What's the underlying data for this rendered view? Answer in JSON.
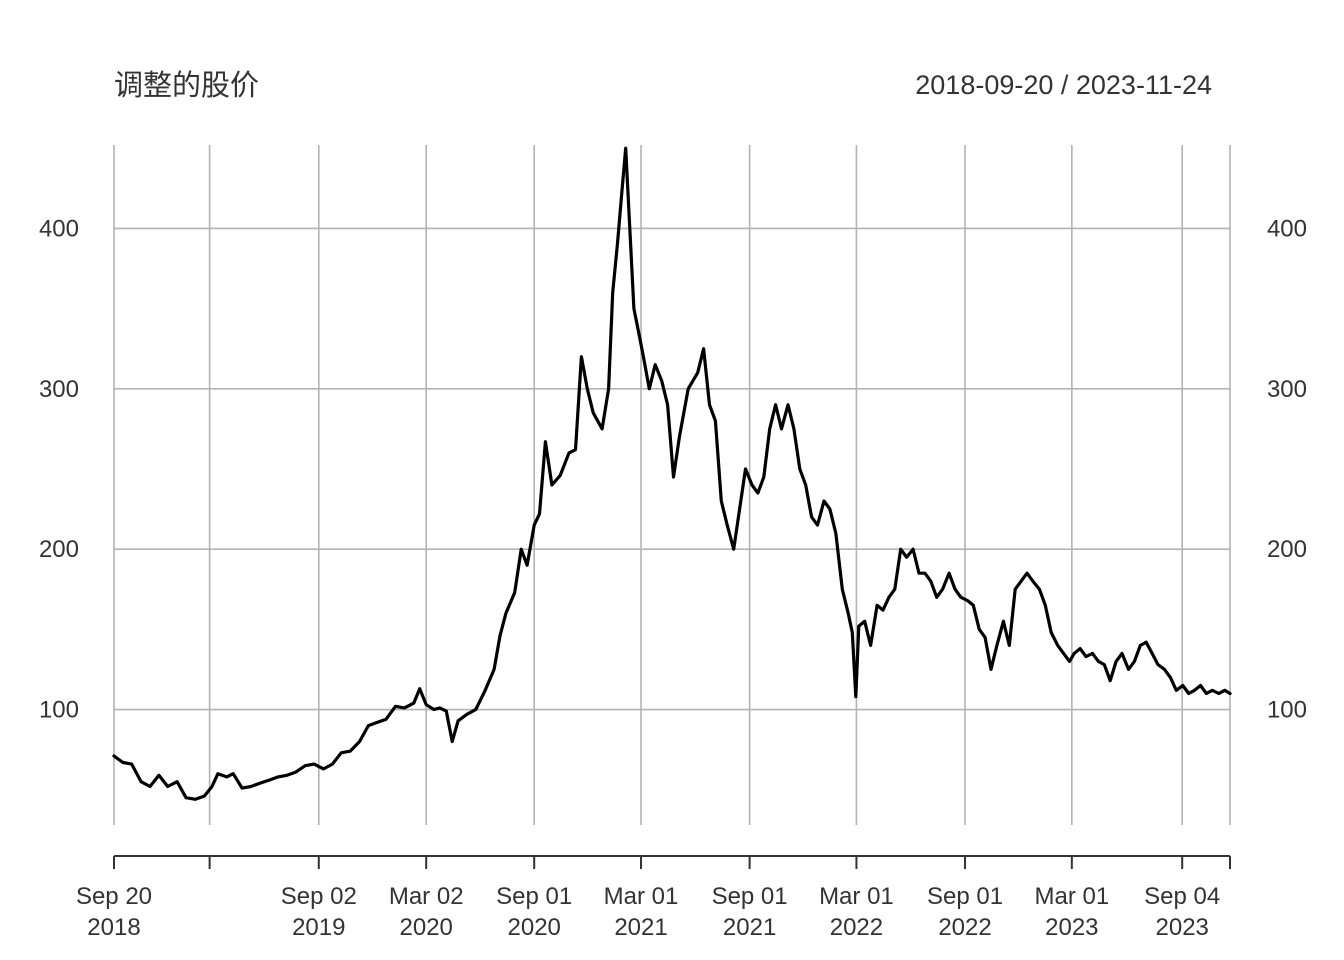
{
  "chart_data": {
    "type": "line",
    "title": "调整的股价",
    "date_range": "2018-09-20 / 2023-11-24",
    "x_range": [
      "2018-09-20",
      "2023-11-24"
    ],
    "ylim": [
      28,
      452
    ],
    "y_ticks": [
      100,
      200,
      300,
      400
    ],
    "x_gridlines": [
      "2018-09-20",
      "2019-03-01",
      "2019-09-02",
      "2020-03-02",
      "2020-09-01",
      "2021-03-01",
      "2021-09-01",
      "2022-03-01",
      "2022-09-01",
      "2023-03-01",
      "2023-09-04",
      "2023-11-24"
    ],
    "x_tick_labels": [
      {
        "date": "2018-09-20",
        "line1": "Sep 20",
        "line2": "2018"
      },
      {
        "date": "2019-09-02",
        "line1": "Sep 02",
        "line2": "2019"
      },
      {
        "date": "2020-03-02",
        "line1": "Mar 02",
        "line2": "2020"
      },
      {
        "date": "2020-09-01",
        "line1": "Sep 01",
        "line2": "2020"
      },
      {
        "date": "2021-03-01",
        "line1": "Mar 01",
        "line2": "2021"
      },
      {
        "date": "2021-09-01",
        "line1": "Sep 01",
        "line2": "2021"
      },
      {
        "date": "2022-03-01",
        "line1": "Mar 01",
        "line2": "2022"
      },
      {
        "date": "2022-09-01",
        "line1": "Sep 01",
        "line2": "2022"
      },
      {
        "date": "2023-03-01",
        "line1": "Mar 01",
        "line2": "2023"
      },
      {
        "date": "2023-09-04",
        "line1": "Sep 04",
        "line2": "2023"
      }
    ],
    "grid": true,
    "series": [
      {
        "color": "#000000",
        "points": [
          [
            "2018-09-20",
            71
          ],
          [
            "2018-10-05",
            67
          ],
          [
            "2018-10-20",
            66
          ],
          [
            "2018-11-05",
            55
          ],
          [
            "2018-11-20",
            52
          ],
          [
            "2018-12-05",
            59
          ],
          [
            "2018-12-20",
            52
          ],
          [
            "2019-01-05",
            55
          ],
          [
            "2019-01-20",
            45
          ],
          [
            "2019-02-05",
            44
          ],
          [
            "2019-02-20",
            46
          ],
          [
            "2019-03-05",
            52
          ],
          [
            "2019-03-15",
            60
          ],
          [
            "2019-03-30",
            58
          ],
          [
            "2019-04-10",
            60
          ],
          [
            "2019-04-25",
            51
          ],
          [
            "2019-05-10",
            52
          ],
          [
            "2019-05-25",
            54
          ],
          [
            "2019-06-10",
            56
          ],
          [
            "2019-06-25",
            58
          ],
          [
            "2019-07-10",
            59
          ],
          [
            "2019-07-25",
            61
          ],
          [
            "2019-08-10",
            65
          ],
          [
            "2019-08-25",
            66
          ],
          [
            "2019-09-10",
            63
          ],
          [
            "2019-09-25",
            66
          ],
          [
            "2019-10-10",
            73
          ],
          [
            "2019-10-25",
            74
          ],
          [
            "2019-11-10",
            80
          ],
          [
            "2019-11-25",
            90
          ],
          [
            "2019-12-10",
            92
          ],
          [
            "2019-12-25",
            94
          ],
          [
            "2020-01-10",
            102
          ],
          [
            "2020-01-25",
            101
          ],
          [
            "2020-02-10",
            104
          ],
          [
            "2020-02-20",
            113
          ],
          [
            "2020-03-02",
            103
          ],
          [
            "2020-03-15",
            100
          ],
          [
            "2020-03-25",
            101
          ],
          [
            "2020-04-05",
            99
          ],
          [
            "2020-04-15",
            80
          ],
          [
            "2020-04-25",
            93
          ],
          [
            "2020-05-10",
            97
          ],
          [
            "2020-05-25",
            100
          ],
          [
            "2020-06-10",
            112
          ],
          [
            "2020-06-25",
            125
          ],
          [
            "2020-07-05",
            146
          ],
          [
            "2020-07-15",
            160
          ],
          [
            "2020-07-30",
            173
          ],
          [
            "2020-08-10",
            200
          ],
          [
            "2020-08-20",
            190
          ],
          [
            "2020-09-01",
            215
          ],
          [
            "2020-09-10",
            222
          ],
          [
            "2020-09-20",
            267
          ],
          [
            "2020-10-01",
            240
          ],
          [
            "2020-10-15",
            246
          ],
          [
            "2020-10-30",
            260
          ],
          [
            "2020-11-10",
            262
          ],
          [
            "2020-11-20",
            320
          ],
          [
            "2020-11-30",
            300
          ],
          [
            "2020-12-10",
            285
          ],
          [
            "2020-12-25",
            275
          ],
          [
            "2021-01-05",
            300
          ],
          [
            "2021-01-12",
            360
          ],
          [
            "2021-01-20",
            390
          ],
          [
            "2021-01-27",
            420
          ],
          [
            "2021-02-03",
            450
          ],
          [
            "2021-02-10",
            400
          ],
          [
            "2021-02-17",
            350
          ],
          [
            "2021-02-25",
            335
          ],
          [
            "2021-03-05",
            320
          ],
          [
            "2021-03-15",
            300
          ],
          [
            "2021-03-25",
            315
          ],
          [
            "2021-04-05",
            305
          ],
          [
            "2021-04-15",
            290
          ],
          [
            "2021-04-25",
            245
          ],
          [
            "2021-05-05",
            270
          ],
          [
            "2021-05-20",
            300
          ],
          [
            "2021-06-05",
            310
          ],
          [
            "2021-06-15",
            325
          ],
          [
            "2021-06-25",
            290
          ],
          [
            "2021-07-05",
            280
          ],
          [
            "2021-07-15",
            230
          ],
          [
            "2021-07-25",
            215
          ],
          [
            "2021-08-05",
            200
          ],
          [
            "2021-08-15",
            225
          ],
          [
            "2021-08-25",
            250
          ],
          [
            "2021-09-05",
            240
          ],
          [
            "2021-09-15",
            235
          ],
          [
            "2021-09-25",
            245
          ],
          [
            "2021-10-05",
            275
          ],
          [
            "2021-10-15",
            290
          ],
          [
            "2021-10-25",
            275
          ],
          [
            "2021-11-05",
            290
          ],
          [
            "2021-11-15",
            275
          ],
          [
            "2021-11-25",
            250
          ],
          [
            "2021-12-05",
            240
          ],
          [
            "2021-12-15",
            220
          ],
          [
            "2021-12-25",
            215
          ],
          [
            "2022-01-05",
            230
          ],
          [
            "2022-01-15",
            225
          ],
          [
            "2022-01-25",
            210
          ],
          [
            "2022-02-05",
            175
          ],
          [
            "2022-02-15",
            160
          ],
          [
            "2022-02-22",
            148
          ],
          [
            "2022-02-28",
            108
          ],
          [
            "2022-03-05",
            152
          ],
          [
            "2022-03-15",
            155
          ],
          [
            "2022-03-25",
            140
          ],
          [
            "2022-04-05",
            165
          ],
          [
            "2022-04-15",
            162
          ],
          [
            "2022-04-25",
            170
          ],
          [
            "2022-05-05",
            175
          ],
          [
            "2022-05-15",
            200
          ],
          [
            "2022-05-25",
            195
          ],
          [
            "2022-06-05",
            200
          ],
          [
            "2022-06-15",
            185
          ],
          [
            "2022-06-25",
            185
          ],
          [
            "2022-07-05",
            180
          ],
          [
            "2022-07-15",
            170
          ],
          [
            "2022-07-25",
            175
          ],
          [
            "2022-08-05",
            185
          ],
          [
            "2022-08-15",
            175
          ],
          [
            "2022-08-25",
            170
          ],
          [
            "2022-09-05",
            168
          ],
          [
            "2022-09-15",
            165
          ],
          [
            "2022-09-25",
            150
          ],
          [
            "2022-10-05",
            145
          ],
          [
            "2022-10-15",
            125
          ],
          [
            "2022-10-25",
            140
          ],
          [
            "2022-11-05",
            155
          ],
          [
            "2022-11-15",
            140
          ],
          [
            "2022-11-25",
            175
          ],
          [
            "2022-12-05",
            180
          ],
          [
            "2022-12-15",
            185
          ],
          [
            "2022-12-25",
            180
          ],
          [
            "2023-01-05",
            175
          ],
          [
            "2023-01-15",
            165
          ],
          [
            "2023-01-25",
            148
          ],
          [
            "2023-02-05",
            140
          ],
          [
            "2023-02-15",
            135
          ],
          [
            "2023-02-25",
            130
          ],
          [
            "2023-03-05",
            135
          ],
          [
            "2023-03-15",
            138
          ],
          [
            "2023-03-25",
            133
          ],
          [
            "2023-04-05",
            135
          ],
          [
            "2023-04-15",
            130
          ],
          [
            "2023-04-25",
            128
          ],
          [
            "2023-05-05",
            118
          ],
          [
            "2023-05-15",
            130
          ],
          [
            "2023-05-25",
            135
          ],
          [
            "2023-06-05",
            125
          ],
          [
            "2023-06-15",
            130
          ],
          [
            "2023-06-25",
            140
          ],
          [
            "2023-07-05",
            142
          ],
          [
            "2023-07-15",
            135
          ],
          [
            "2023-07-25",
            128
          ],
          [
            "2023-08-05",
            125
          ],
          [
            "2023-08-15",
            120
          ],
          [
            "2023-08-25",
            112
          ],
          [
            "2023-09-05",
            115
          ],
          [
            "2023-09-15",
            110
          ],
          [
            "2023-09-25",
            112
          ],
          [
            "2023-10-05",
            115
          ],
          [
            "2023-10-15",
            110
          ],
          [
            "2023-10-25",
            112
          ],
          [
            "2023-11-05",
            110
          ],
          [
            "2023-11-15",
            112
          ],
          [
            "2023-11-24",
            110
          ]
        ]
      }
    ]
  }
}
